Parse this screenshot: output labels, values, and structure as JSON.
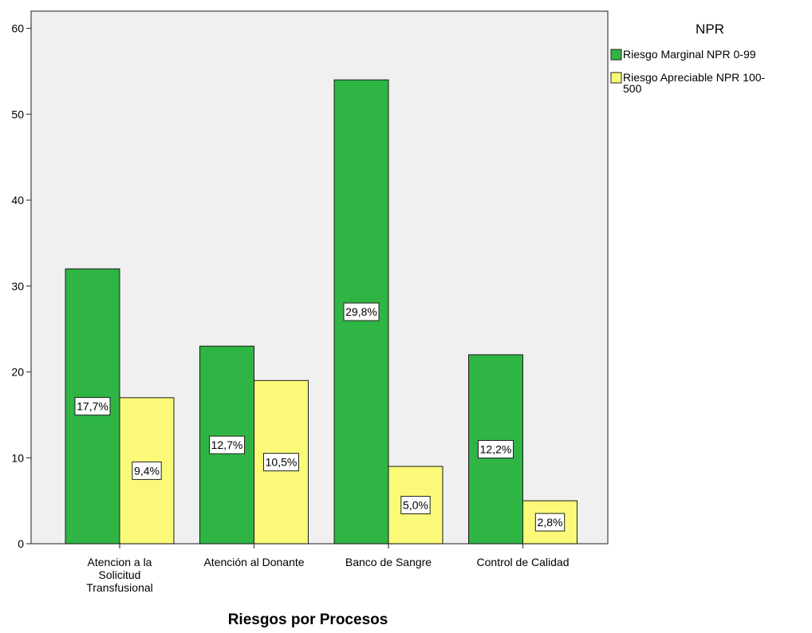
{
  "chart_data": {
    "type": "bar",
    "title": "",
    "xlabel": "Riesgos por Procesos",
    "ylabel": "",
    "ylim": [
      0,
      62
    ],
    "yticks": [
      0,
      10,
      20,
      30,
      40,
      50,
      60
    ],
    "grid": false,
    "legend_position": "right",
    "legend_title": "NPR",
    "categories": [
      [
        "Atencion a la",
        "Solicitud",
        "Transfusional"
      ],
      [
        "Atención al Donante"
      ],
      [
        "Banco de Sangre"
      ],
      [
        "Control de Calidad"
      ]
    ],
    "series": [
      {
        "name": "Riesgo Marginal NPR 0-99",
        "legend_lines": [
          "Riesgo Marginal NPR 0-99"
        ],
        "color": "#2fb544",
        "values": [
          32,
          23,
          54,
          22
        ],
        "labels": [
          "17,7%",
          "12,7%",
          "29,8%",
          "12,2%"
        ]
      },
      {
        "name": "Riesgo Apreciable NPR 100-500",
        "legend_lines": [
          "Riesgo Apreciable NPR 100-",
          "500"
        ],
        "color": "#fafa78",
        "values": [
          17,
          19,
          9,
          5
        ],
        "labels": [
          "9,4%",
          "10,5%",
          "5,0%",
          "2,8%"
        ]
      }
    ],
    "plot_background": "#f0f0f0"
  }
}
